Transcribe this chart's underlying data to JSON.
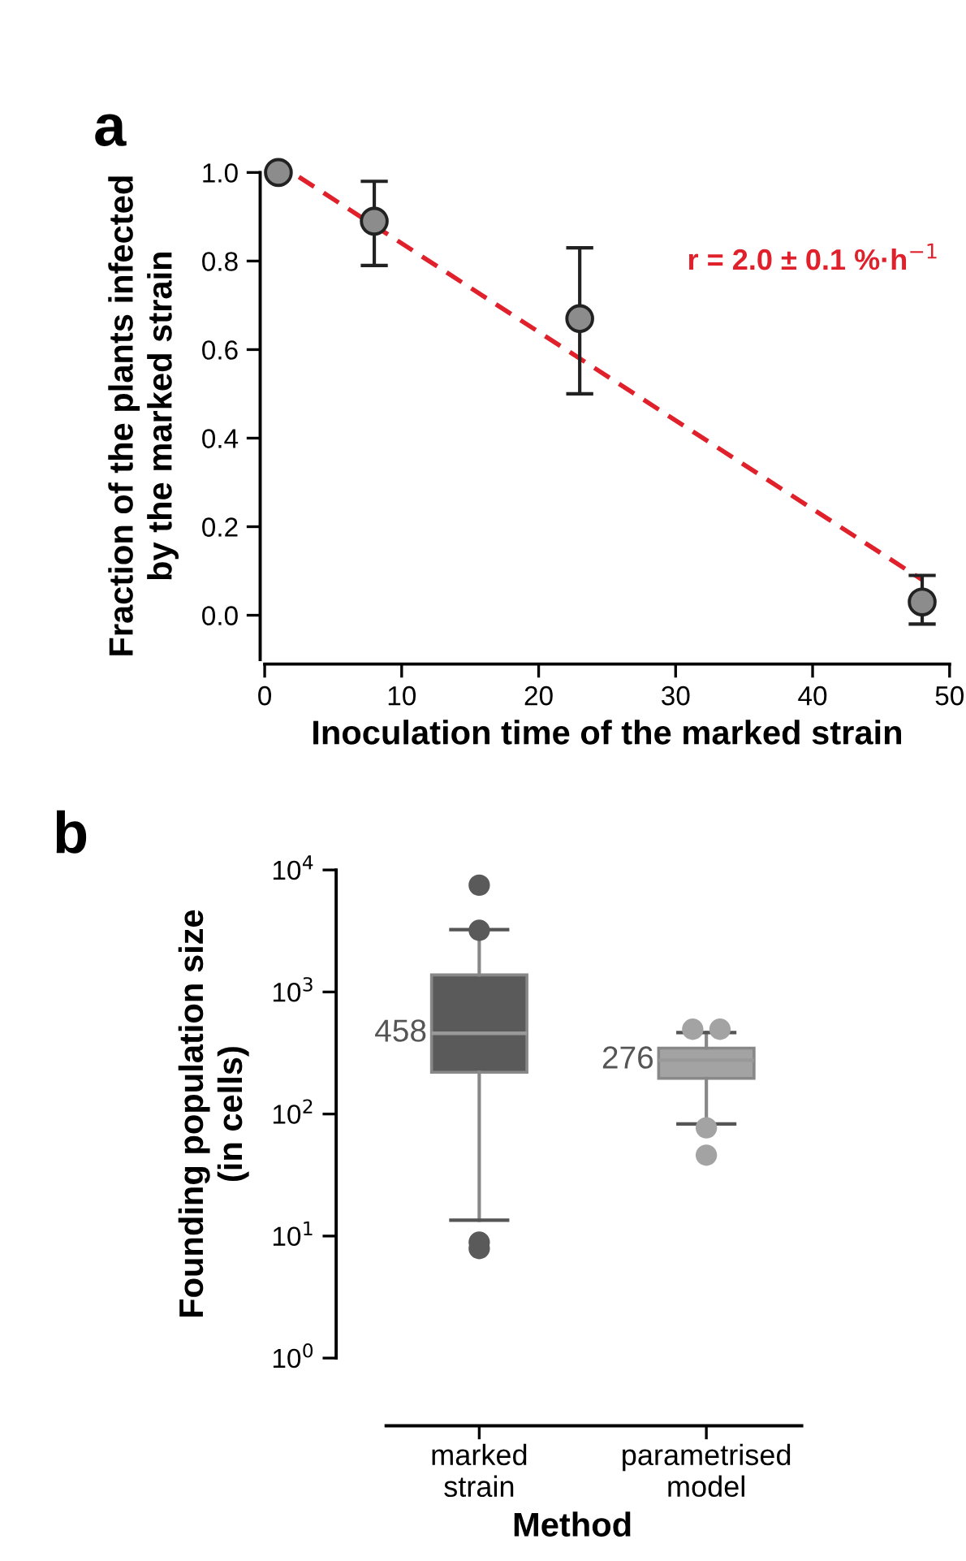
{
  "chart_data": [
    {
      "type": "scatter",
      "xlabel": "Inoculation time of the marked strain",
      "ylabel": "Fraction of the plants infected\nby the marked strain",
      "annotations": [
        "a",
        "r = 2.0 ± 0.1 %·h$^{−1}$"
      ],
      "xlim": [
        0,
        50
      ],
      "ylim": [
        -0.1,
        1.0
      ],
      "xticks": [
        0,
        10,
        20,
        30,
        40,
        50
      ],
      "yticks": [
        {
          "value": 0,
          "label": "0.0"
        },
        {
          "value": 0.2,
          "label": "0.2"
        },
        {
          "value": 0.4,
          "label": "0.4"
        },
        {
          "value": 0.6,
          "label": "0.6"
        },
        {
          "value": 0.8,
          "label": "0.8"
        },
        {
          "value": 1.0,
          "label": "1.0"
        }
      ],
      "grid": false,
      "legend": false,
      "series": [
        {
          "type": "line",
          "color": "#e0202a",
          "line_style": "dashed",
          "marker": "none",
          "x": [
            2.5,
            48
          ],
          "values": [
            0.99,
            0.08
          ]
        },
        {
          "type": "scatter",
          "color": "#8c8c8c",
          "marker": "circle",
          "x": [
            1,
            8,
            23,
            48
          ],
          "values": [
            1.0,
            0.89,
            0.67,
            0.03
          ],
          "errors": [
            null,
            [
              0.79,
              0.98
            ],
            [
              0.5,
              0.83
            ],
            [
              -0.02,
              0.09
            ]
          ]
        }
      ]
    },
    {
      "type": "box",
      "ylabel": "Founding population size\n(in cells)",
      "xlabel": "Method",
      "annotations": [
        "b",
        {
          "text": "458",
          "x": "marked\nstrain",
          "y": 458
        },
        {
          "text": "276",
          "x": "parametrised\nmodel",
          "y": 276
        }
      ],
      "categories": [
        "marked\nstrain",
        "parametrised\nmodel"
      ],
      "log": true,
      "ylim": [
        1,
        10000
      ],
      "yticks": [
        {
          "value": 1,
          "label": "10$^{0}$"
        },
        {
          "value": 10,
          "label": "10$^{1}$"
        },
        {
          "value": 100,
          "label": "10$^{2}$"
        },
        {
          "value": 1000,
          "label": "10$^{3}$"
        },
        {
          "value": 10000,
          "label": "10$^{4}$"
        }
      ],
      "grid": false,
      "legend": false,
      "colors": [
        "#5a5a5a",
        "#a3a3a3"
      ],
      "boxes": [
        {
          "low": 13.5,
          "q1": 220,
          "median": 458,
          "q3": 1380,
          "high": 3240,
          "outliers": [
            7500,
            3200,
            7.9,
            8.9
          ]
        },
        {
          "low": 83,
          "q1": 196,
          "median": 276,
          "q3": 347,
          "high": 465,
          "outliers": [
            495,
            495,
            77,
            46
          ]
        }
      ]
    }
  ]
}
